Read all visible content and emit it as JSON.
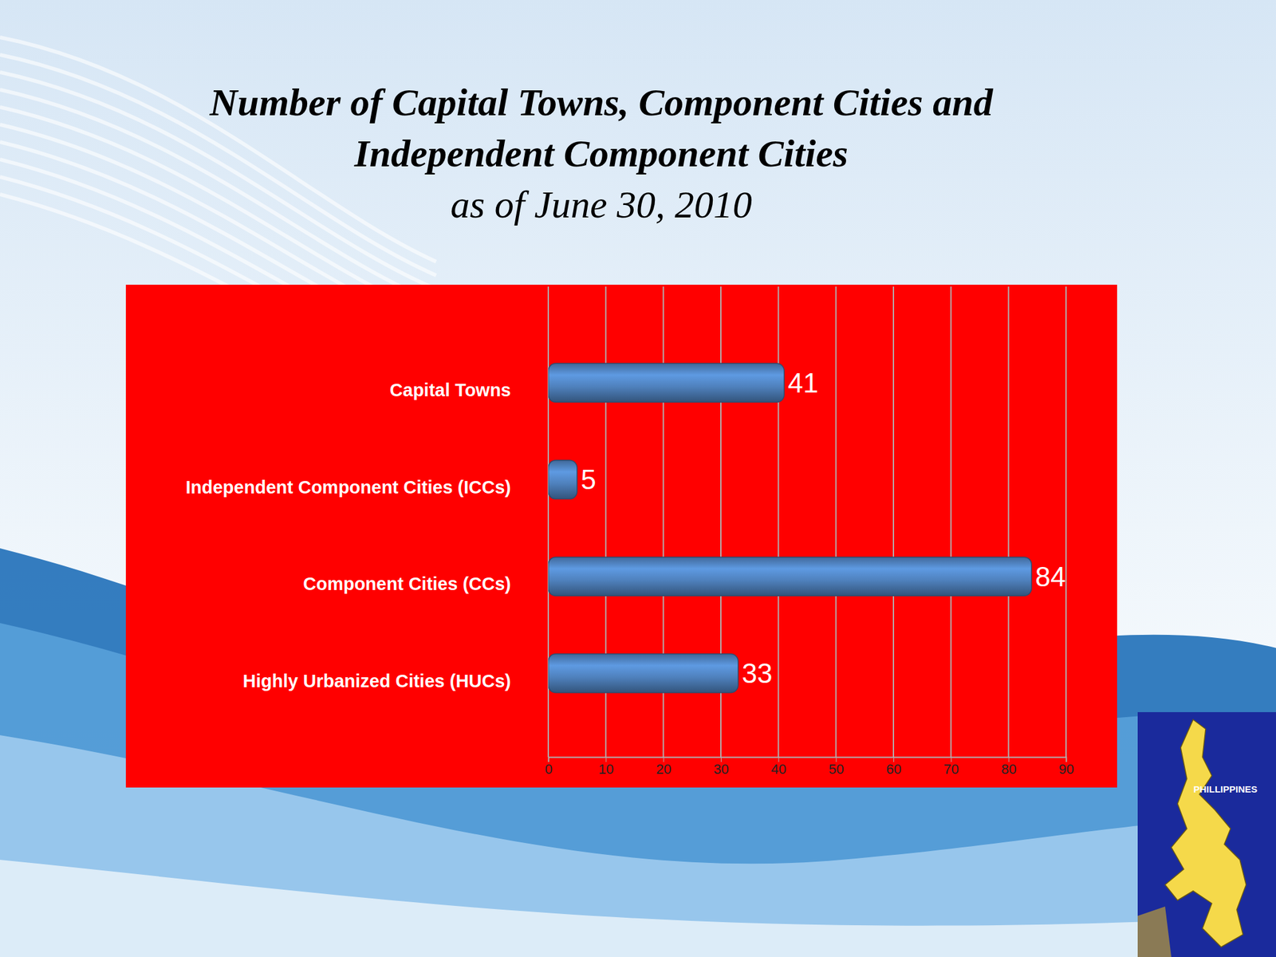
{
  "chart_data": {
    "type": "bar",
    "orientation": "horizontal",
    "title": "Number of Capital Towns, Component Cities and Independent Component Cities",
    "subtitle": "as of June 30, 2010",
    "categories": [
      "Capital Towns",
      "Independent Component Cities (ICCs)",
      "Component Cities (CCs)",
      "Highly Urbanized Cities (HUCs)"
    ],
    "values": [
      41,
      5,
      84,
      33
    ],
    "color": "#4f81bd",
    "xlim": [
      0,
      90
    ],
    "xticks": [
      0,
      10,
      20,
      30,
      40,
      50,
      60,
      70,
      80,
      90
    ],
    "grid": true,
    "data_labels": true,
    "annotations": [
      "PHILLIPPINES"
    ]
  }
}
